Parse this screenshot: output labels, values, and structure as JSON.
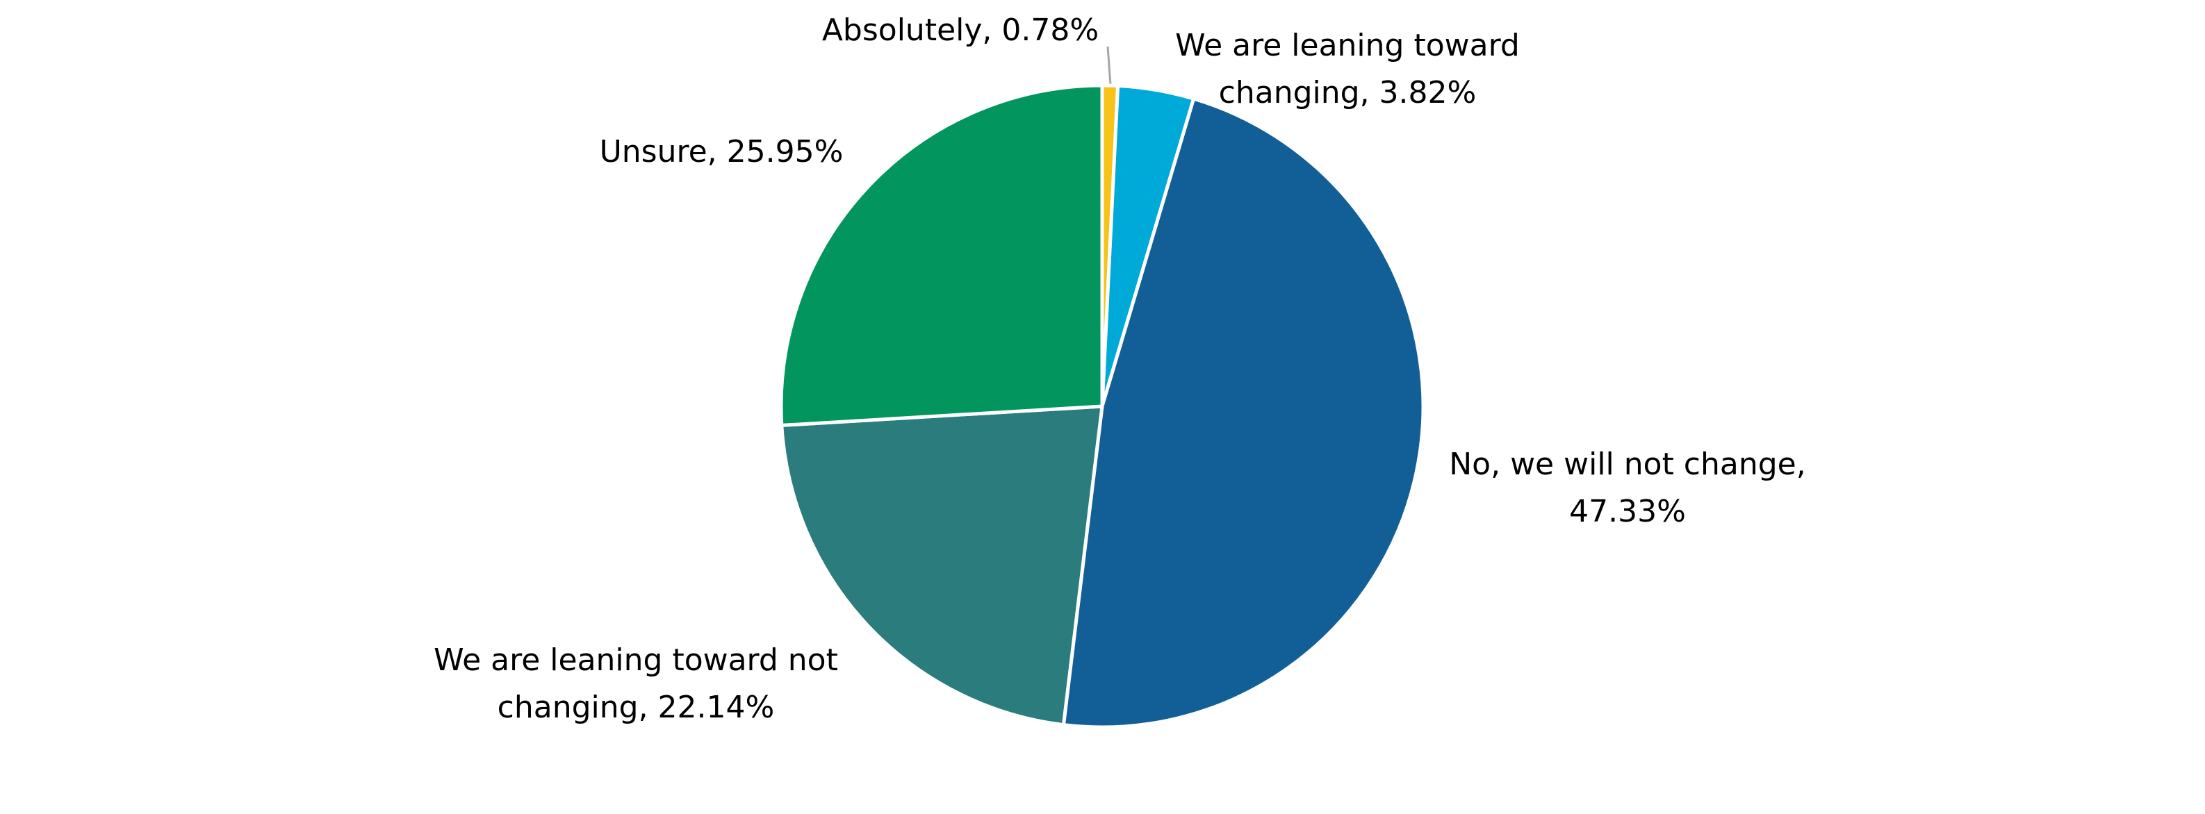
{
  "chart_data": {
    "type": "pie",
    "values": [
      0.78,
      3.82,
      47.33,
      22.14,
      25.95
    ],
    "value_labels": [
      "Absolutely, 0.78%",
      "We are leaning toward changing, 3.82%",
      "No, we will not change, 47.33%",
      "We are leaning toward not changing, 22.14%",
      "Unsure, 25.95%"
    ],
    "colors": [
      "#f7c318",
      "#00aad8",
      "#125f97",
      "#2a7d7c",
      "#02965e"
    ]
  }
}
